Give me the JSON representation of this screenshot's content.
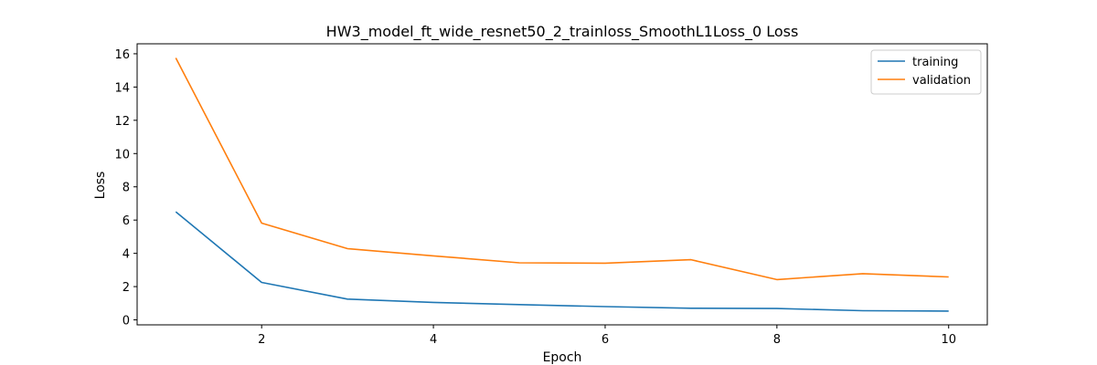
{
  "chart_data": {
    "type": "line",
    "title": "HW3_model_ft_wide_resnet50_2_trainloss_SmoothL1Loss_0 Loss",
    "xlabel": "Epoch",
    "ylabel": "Loss",
    "x": [
      1,
      2,
      3,
      4,
      5,
      6,
      7,
      8,
      9,
      10
    ],
    "xlim": [
      0.55,
      10.45
    ],
    "ylim": [
      -0.3,
      16.6
    ],
    "xticks": [
      2,
      4,
      6,
      8,
      10
    ],
    "yticks": [
      0,
      2,
      4,
      6,
      8,
      10,
      12,
      14,
      16
    ],
    "grid": false,
    "legend_position": "top-right",
    "series": [
      {
        "name": "training",
        "color": "#1f77b4",
        "values": [
          6.5,
          2.25,
          1.25,
          1.05,
          0.92,
          0.8,
          0.7,
          0.68,
          0.55,
          0.53
        ]
      },
      {
        "name": "validation",
        "color": "#ff7f0e",
        "values": [
          15.75,
          5.82,
          4.28,
          3.85,
          3.43,
          3.41,
          3.62,
          2.42,
          2.78,
          2.58
        ]
      }
    ]
  }
}
